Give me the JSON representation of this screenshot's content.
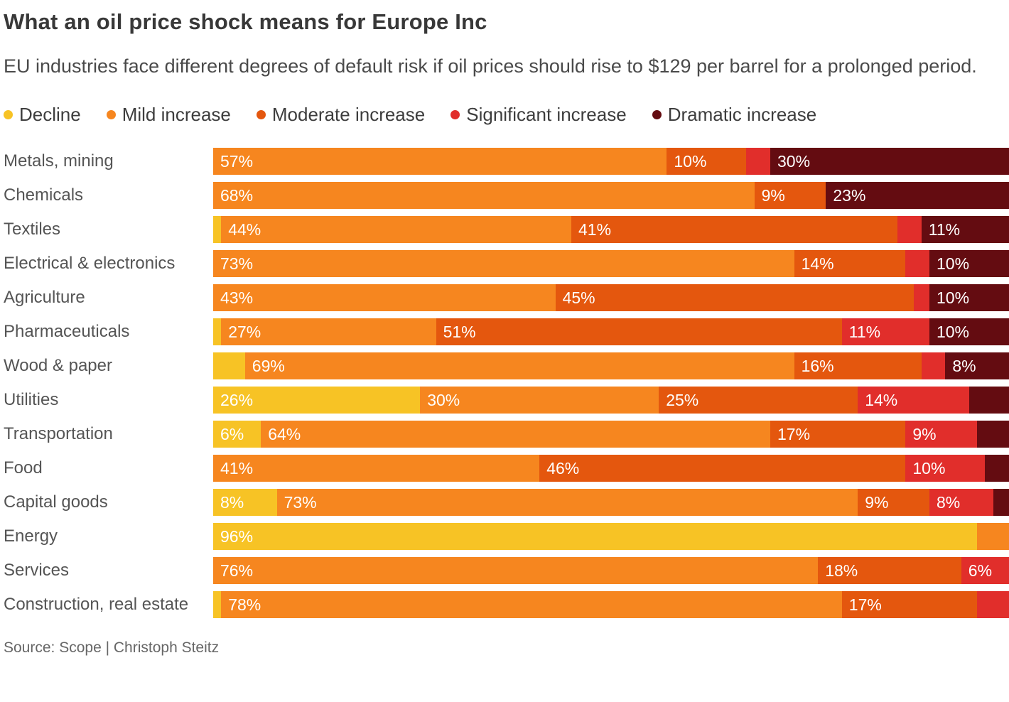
{
  "title": "What an oil price shock means for Europe Inc",
  "subtitle": "EU industries face different degrees of default risk if oil prices should rise to $129 per barrel for a prolonged period.",
  "source": "Source: Scope | Christoph Steitz",
  "chart_data": {
    "type": "bar",
    "orientation": "horizontal",
    "stacked": true,
    "unit": "%",
    "label_threshold": 6,
    "xlim": [
      0,
      100
    ],
    "legend_position": "top",
    "grid": false,
    "categories": [
      "Metals, mining",
      "Chemicals",
      "Textiles",
      "Electrical & electronics",
      "Agriculture",
      "Pharmaceuticals",
      "Wood & paper",
      "Utilities",
      "Transportation",
      "Food",
      "Capital goods",
      "Energy",
      "Services",
      "Construction, real estate"
    ],
    "series": [
      {
        "name": "Decline",
        "color": "#F7C325",
        "values": [
          0,
          0,
          1,
          0,
          0,
          1,
          4,
          26,
          6,
          0,
          8,
          96,
          0,
          1
        ]
      },
      {
        "name": "Mild increase",
        "color": "#F6861F",
        "values": [
          57,
          68,
          44,
          73,
          43,
          27,
          69,
          30,
          64,
          41,
          73,
          4,
          76,
          78
        ]
      },
      {
        "name": "Moderate increase",
        "color": "#E4570E",
        "values": [
          10,
          9,
          41,
          14,
          45,
          51,
          16,
          25,
          17,
          46,
          9,
          0,
          18,
          17
        ]
      },
      {
        "name": "Significant increase",
        "color": "#E12E2B",
        "values": [
          3,
          0,
          3,
          3,
          2,
          11,
          3,
          14,
          9,
          10,
          8,
          0,
          6,
          4
        ]
      },
      {
        "name": "Dramatic increase",
        "color": "#640C11",
        "values": [
          30,
          23,
          11,
          10,
          10,
          10,
          8,
          5,
          4,
          3,
          2,
          0,
          0,
          0
        ]
      }
    ]
  }
}
